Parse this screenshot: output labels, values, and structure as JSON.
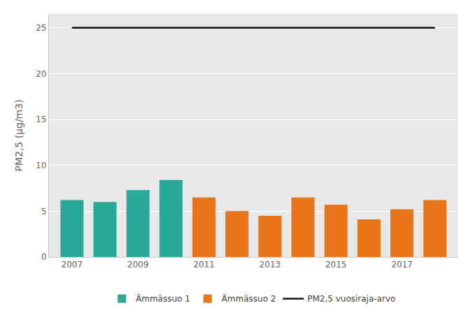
{
  "chart_data": {
    "type": "bar",
    "categories": [
      "2007",
      null,
      "2009",
      null,
      "2011",
      null,
      "2013",
      null,
      "2015",
      null,
      "2017",
      null
    ],
    "ylabel": "PM2,5 (μg/m3)",
    "series": [
      {
        "name": "Ämmässuo 1",
        "color": "#2aaa96",
        "values": [
          6.2,
          6.0,
          7.3,
          8.4,
          null,
          null,
          null,
          null,
          null,
          null,
          null,
          null
        ]
      },
      {
        "name": "Ämmässuo 2",
        "color": "#e8751a",
        "values": [
          null,
          null,
          null,
          null,
          6.5,
          5.0,
          4.5,
          6.5,
          5.7,
          4.1,
          5.2,
          6.2
        ]
      },
      {
        "name": "PM2,5 vuosiraja-arvo",
        "type": "line",
        "color": "#111111",
        "values": [
          25,
          25,
          25,
          25,
          25,
          25,
          25,
          25,
          25,
          25,
          25,
          25
        ]
      }
    ],
    "ylim": [
      0,
      26.5
    ],
    "yticks": [
      0,
      5,
      10,
      15,
      20,
      25
    ],
    "grid": true,
    "legend": "bottom"
  }
}
